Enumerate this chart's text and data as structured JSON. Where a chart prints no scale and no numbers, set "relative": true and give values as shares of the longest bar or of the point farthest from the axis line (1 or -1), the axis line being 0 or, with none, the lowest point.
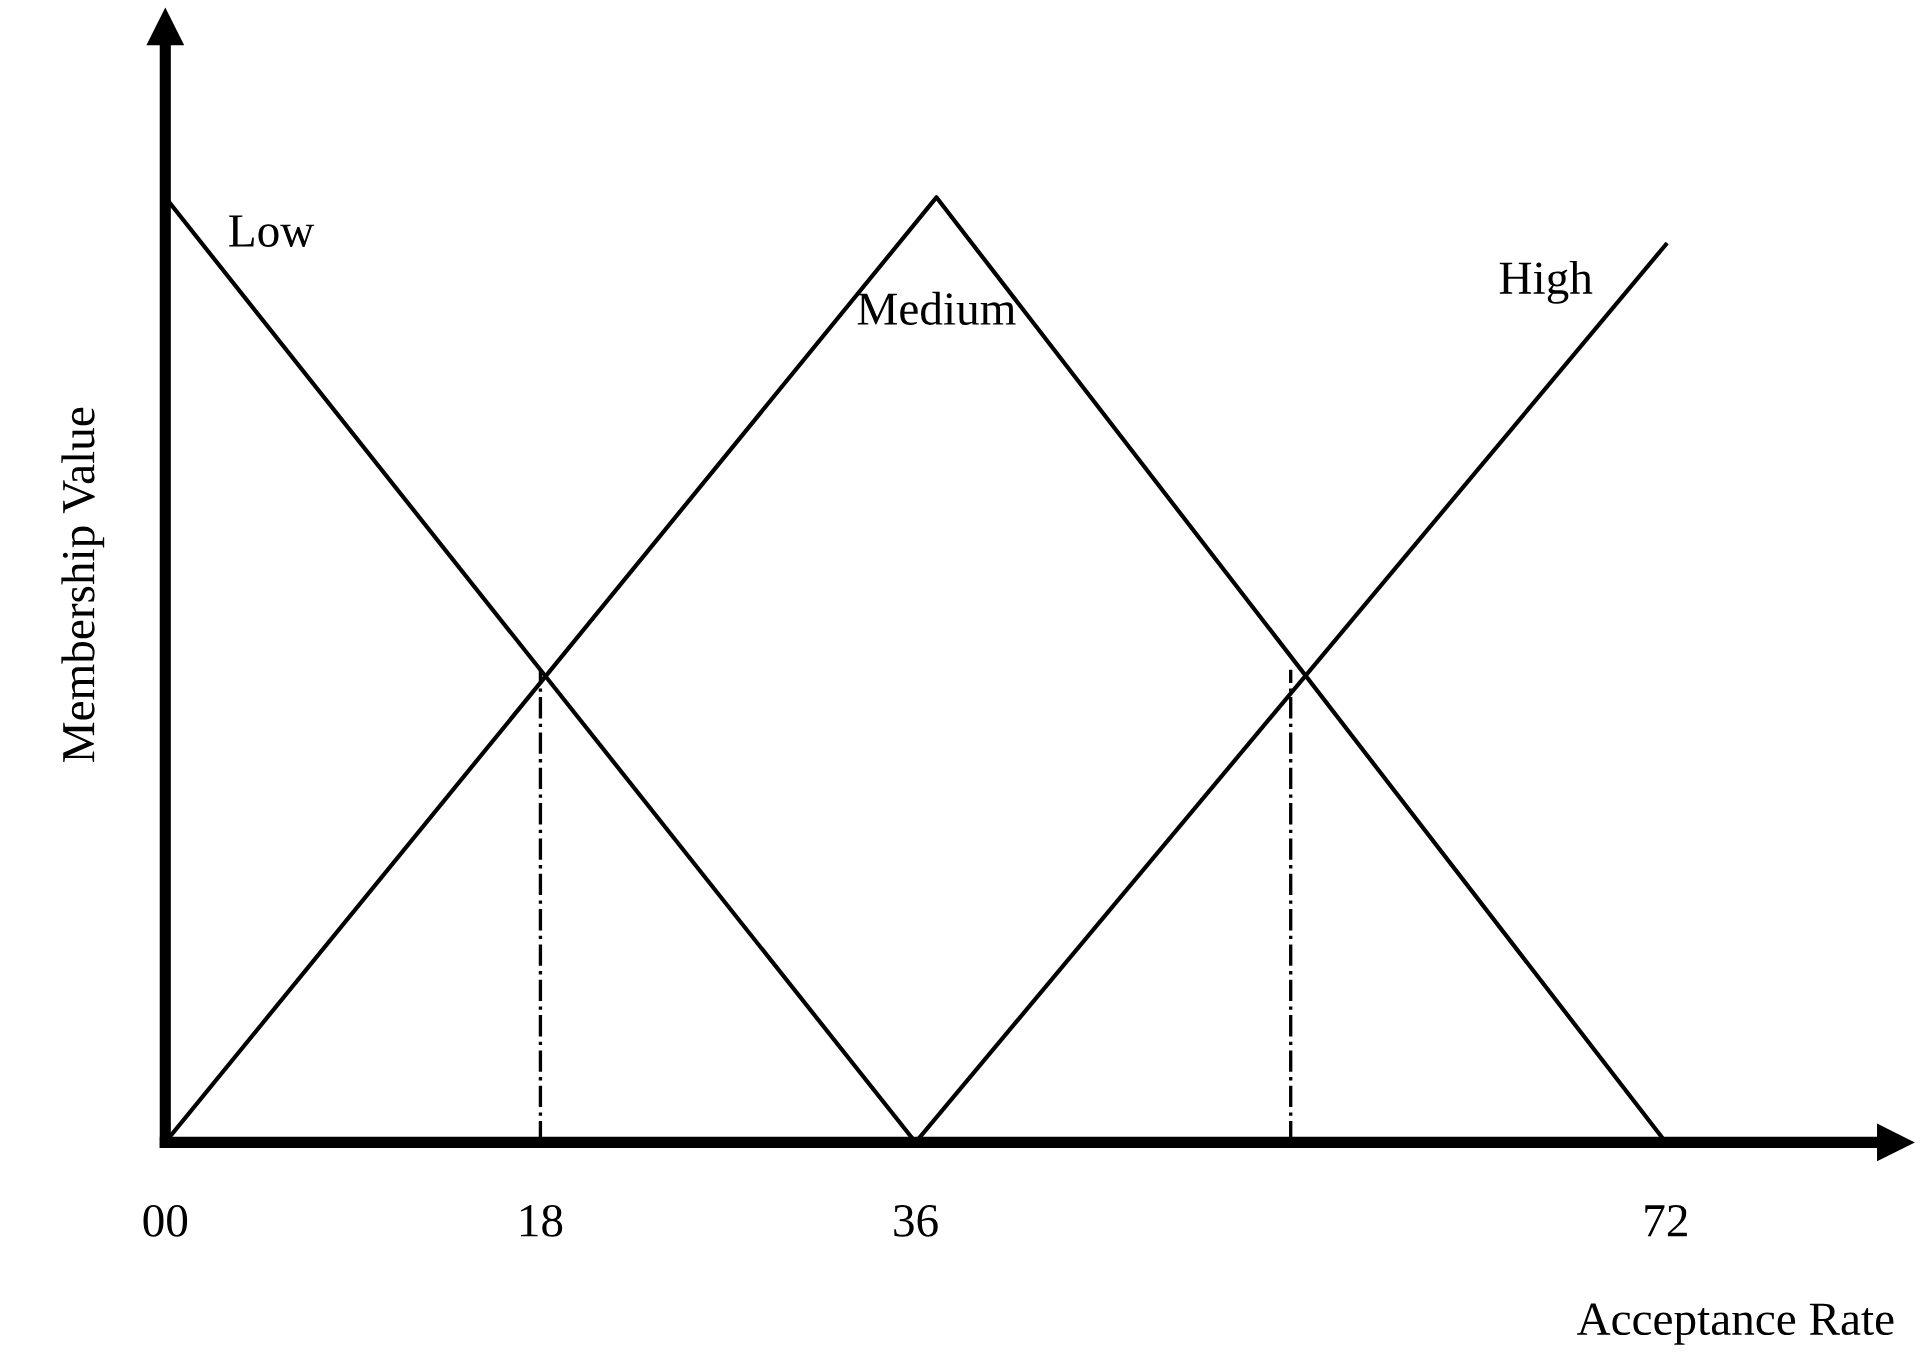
{
  "chart_data": {
    "type": "line",
    "relative": true,
    "xlabel": "Acceptance Rate",
    "ylabel": "Membership Value",
    "xlim": [
      0,
      83
    ],
    "xticks": [
      {
        "value": 0,
        "label": "00"
      },
      18,
      36,
      72
    ],
    "series": [
      {
        "name": "Low",
        "color": "#000000",
        "x": [
          0,
          36
        ],
        "values": [
          1,
          0
        ]
      },
      {
        "name": "Medium",
        "color": "#000000",
        "x": [
          0,
          37,
          72
        ],
        "values": [
          0,
          1,
          0
        ]
      },
      {
        "name": "High",
        "color": "#000000",
        "x": [
          36,
          72
        ],
        "values": [
          0,
          0.95
        ]
      },
      {
        "color": "#000000",
        "x": [
          18,
          18
        ],
        "values": [
          0,
          0.5
        ],
        "line_style": "dashdot"
      },
      {
        "color": "#000000",
        "x": [
          54,
          54
        ],
        "values": [
          0,
          0.5
        ],
        "line_style": "dashdot"
      }
    ],
    "line_style": "solid",
    "marker": "none",
    "grid": false,
    "legend": false
  }
}
